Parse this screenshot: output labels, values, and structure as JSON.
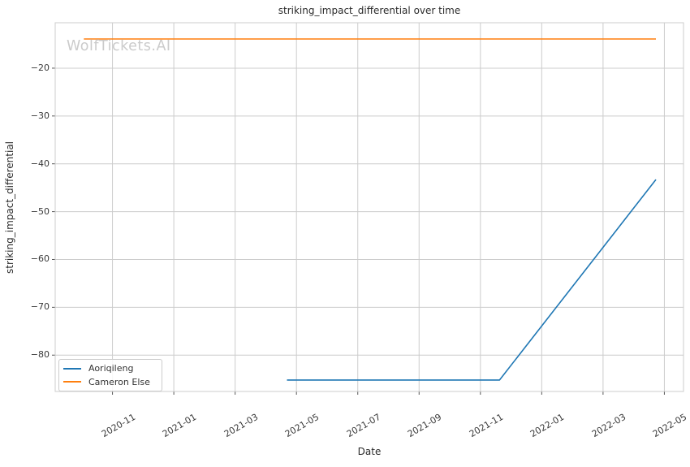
{
  "chart_data": {
    "type": "line",
    "title": "striking_impact_differential over time",
    "xlabel": "Date",
    "ylabel": "striking_impact_differential",
    "watermark": "WolfTickets.AI",
    "grid": true,
    "legend_position": "lower-left",
    "background": "#ffffff",
    "grid_color": "#cccccc",
    "xlim": [
      "2020-09-05",
      "2022-05-20"
    ],
    "ylim": [
      -87.6,
      -10.5
    ],
    "xticks": [
      {
        "label": "2020-11",
        "date": "2020-11-01"
      },
      {
        "label": "2021-01",
        "date": "2021-01-01"
      },
      {
        "label": "2021-03",
        "date": "2021-03-01"
      },
      {
        "label": "2021-05",
        "date": "2021-05-01"
      },
      {
        "label": "2021-07",
        "date": "2021-07-01"
      },
      {
        "label": "2021-09",
        "date": "2021-09-01"
      },
      {
        "label": "2021-11",
        "date": "2021-11-01"
      },
      {
        "label": "2022-01",
        "date": "2022-01-01"
      },
      {
        "label": "2022-03",
        "date": "2022-03-01"
      },
      {
        "label": "2022-05",
        "date": "2022-05-01"
      }
    ],
    "yticks": [
      {
        "label": "−20",
        "value": -20
      },
      {
        "label": "−30",
        "value": -30
      },
      {
        "label": "−40",
        "value": -40
      },
      {
        "label": "−50",
        "value": -50
      },
      {
        "label": "−60",
        "value": -60
      },
      {
        "label": "−70",
        "value": -70
      },
      {
        "label": "−80",
        "value": -80
      }
    ],
    "series": [
      {
        "name": "Aoriqileng",
        "color": "#1f77b4",
        "points": [
          {
            "date": "2021-04-22",
            "value": -85.2
          },
          {
            "date": "2021-11-20",
            "value": -85.2
          },
          {
            "date": "2022-04-23",
            "value": -43.3
          }
        ]
      },
      {
        "name": "Cameron Else",
        "color": "#ff7f0e",
        "points": [
          {
            "date": "2020-10-03",
            "value": -13.9
          },
          {
            "date": "2022-04-23",
            "value": -13.9
          }
        ]
      }
    ]
  }
}
